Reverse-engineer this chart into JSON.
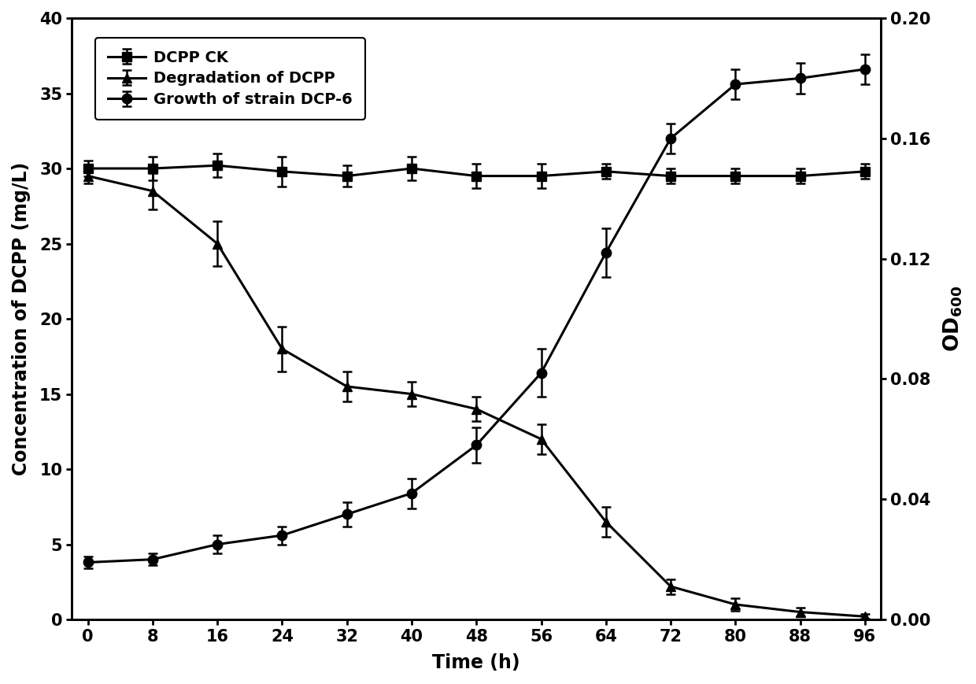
{
  "time": [
    0,
    8,
    16,
    24,
    32,
    40,
    48,
    56,
    64,
    72,
    80,
    88,
    96
  ],
  "dcpp_ck": [
    30.0,
    30.0,
    30.2,
    29.8,
    29.5,
    30.0,
    29.5,
    29.5,
    29.8,
    29.5,
    29.5,
    29.5,
    29.8
  ],
  "dcpp_ck_err": [
    0.5,
    0.8,
    0.8,
    1.0,
    0.7,
    0.8,
    0.8,
    0.8,
    0.5,
    0.5,
    0.5,
    0.5,
    0.5
  ],
  "degradation": [
    29.5,
    28.5,
    25.0,
    18.0,
    15.5,
    15.0,
    14.0,
    12.0,
    6.5,
    2.2,
    1.0,
    0.5,
    0.2
  ],
  "degradation_err": [
    0.5,
    1.2,
    1.5,
    1.5,
    1.0,
    0.8,
    0.8,
    1.0,
    1.0,
    0.5,
    0.4,
    0.3,
    0.15
  ],
  "growth": [
    0.019,
    0.02,
    0.025,
    0.028,
    0.035,
    0.042,
    0.058,
    0.082,
    0.122,
    0.16,
    0.178,
    0.18,
    0.183
  ],
  "growth_err": [
    0.002,
    0.002,
    0.003,
    0.003,
    0.004,
    0.005,
    0.006,
    0.008,
    0.008,
    0.005,
    0.005,
    0.005,
    0.005
  ],
  "ylabel_left": "Concentration of DCPP (mg/L)",
  "ylabel_right": "OD",
  "xlabel": "Time (h)",
  "ylim_left": [
    0,
    40
  ],
  "ylim_right": [
    0.0,
    0.2
  ],
  "yticks_left": [
    0,
    5,
    10,
    15,
    20,
    25,
    30,
    35,
    40
  ],
  "yticks_right": [
    0.0,
    0.04,
    0.08,
    0.12,
    0.16,
    0.2
  ],
  "xticks": [
    0,
    8,
    16,
    24,
    32,
    40,
    48,
    56,
    64,
    72,
    80,
    88,
    96
  ],
  "legend_labels": [
    "DCPP CK",
    "Degradation of DCPP",
    "Growth of strain DCP-6"
  ],
  "line_color": "#000000",
  "background_color": "#ffffff",
  "fontsize_label": 17,
  "fontsize_tick": 15,
  "fontsize_legend": 14,
  "linewidth": 2.2,
  "markersize": 9
}
